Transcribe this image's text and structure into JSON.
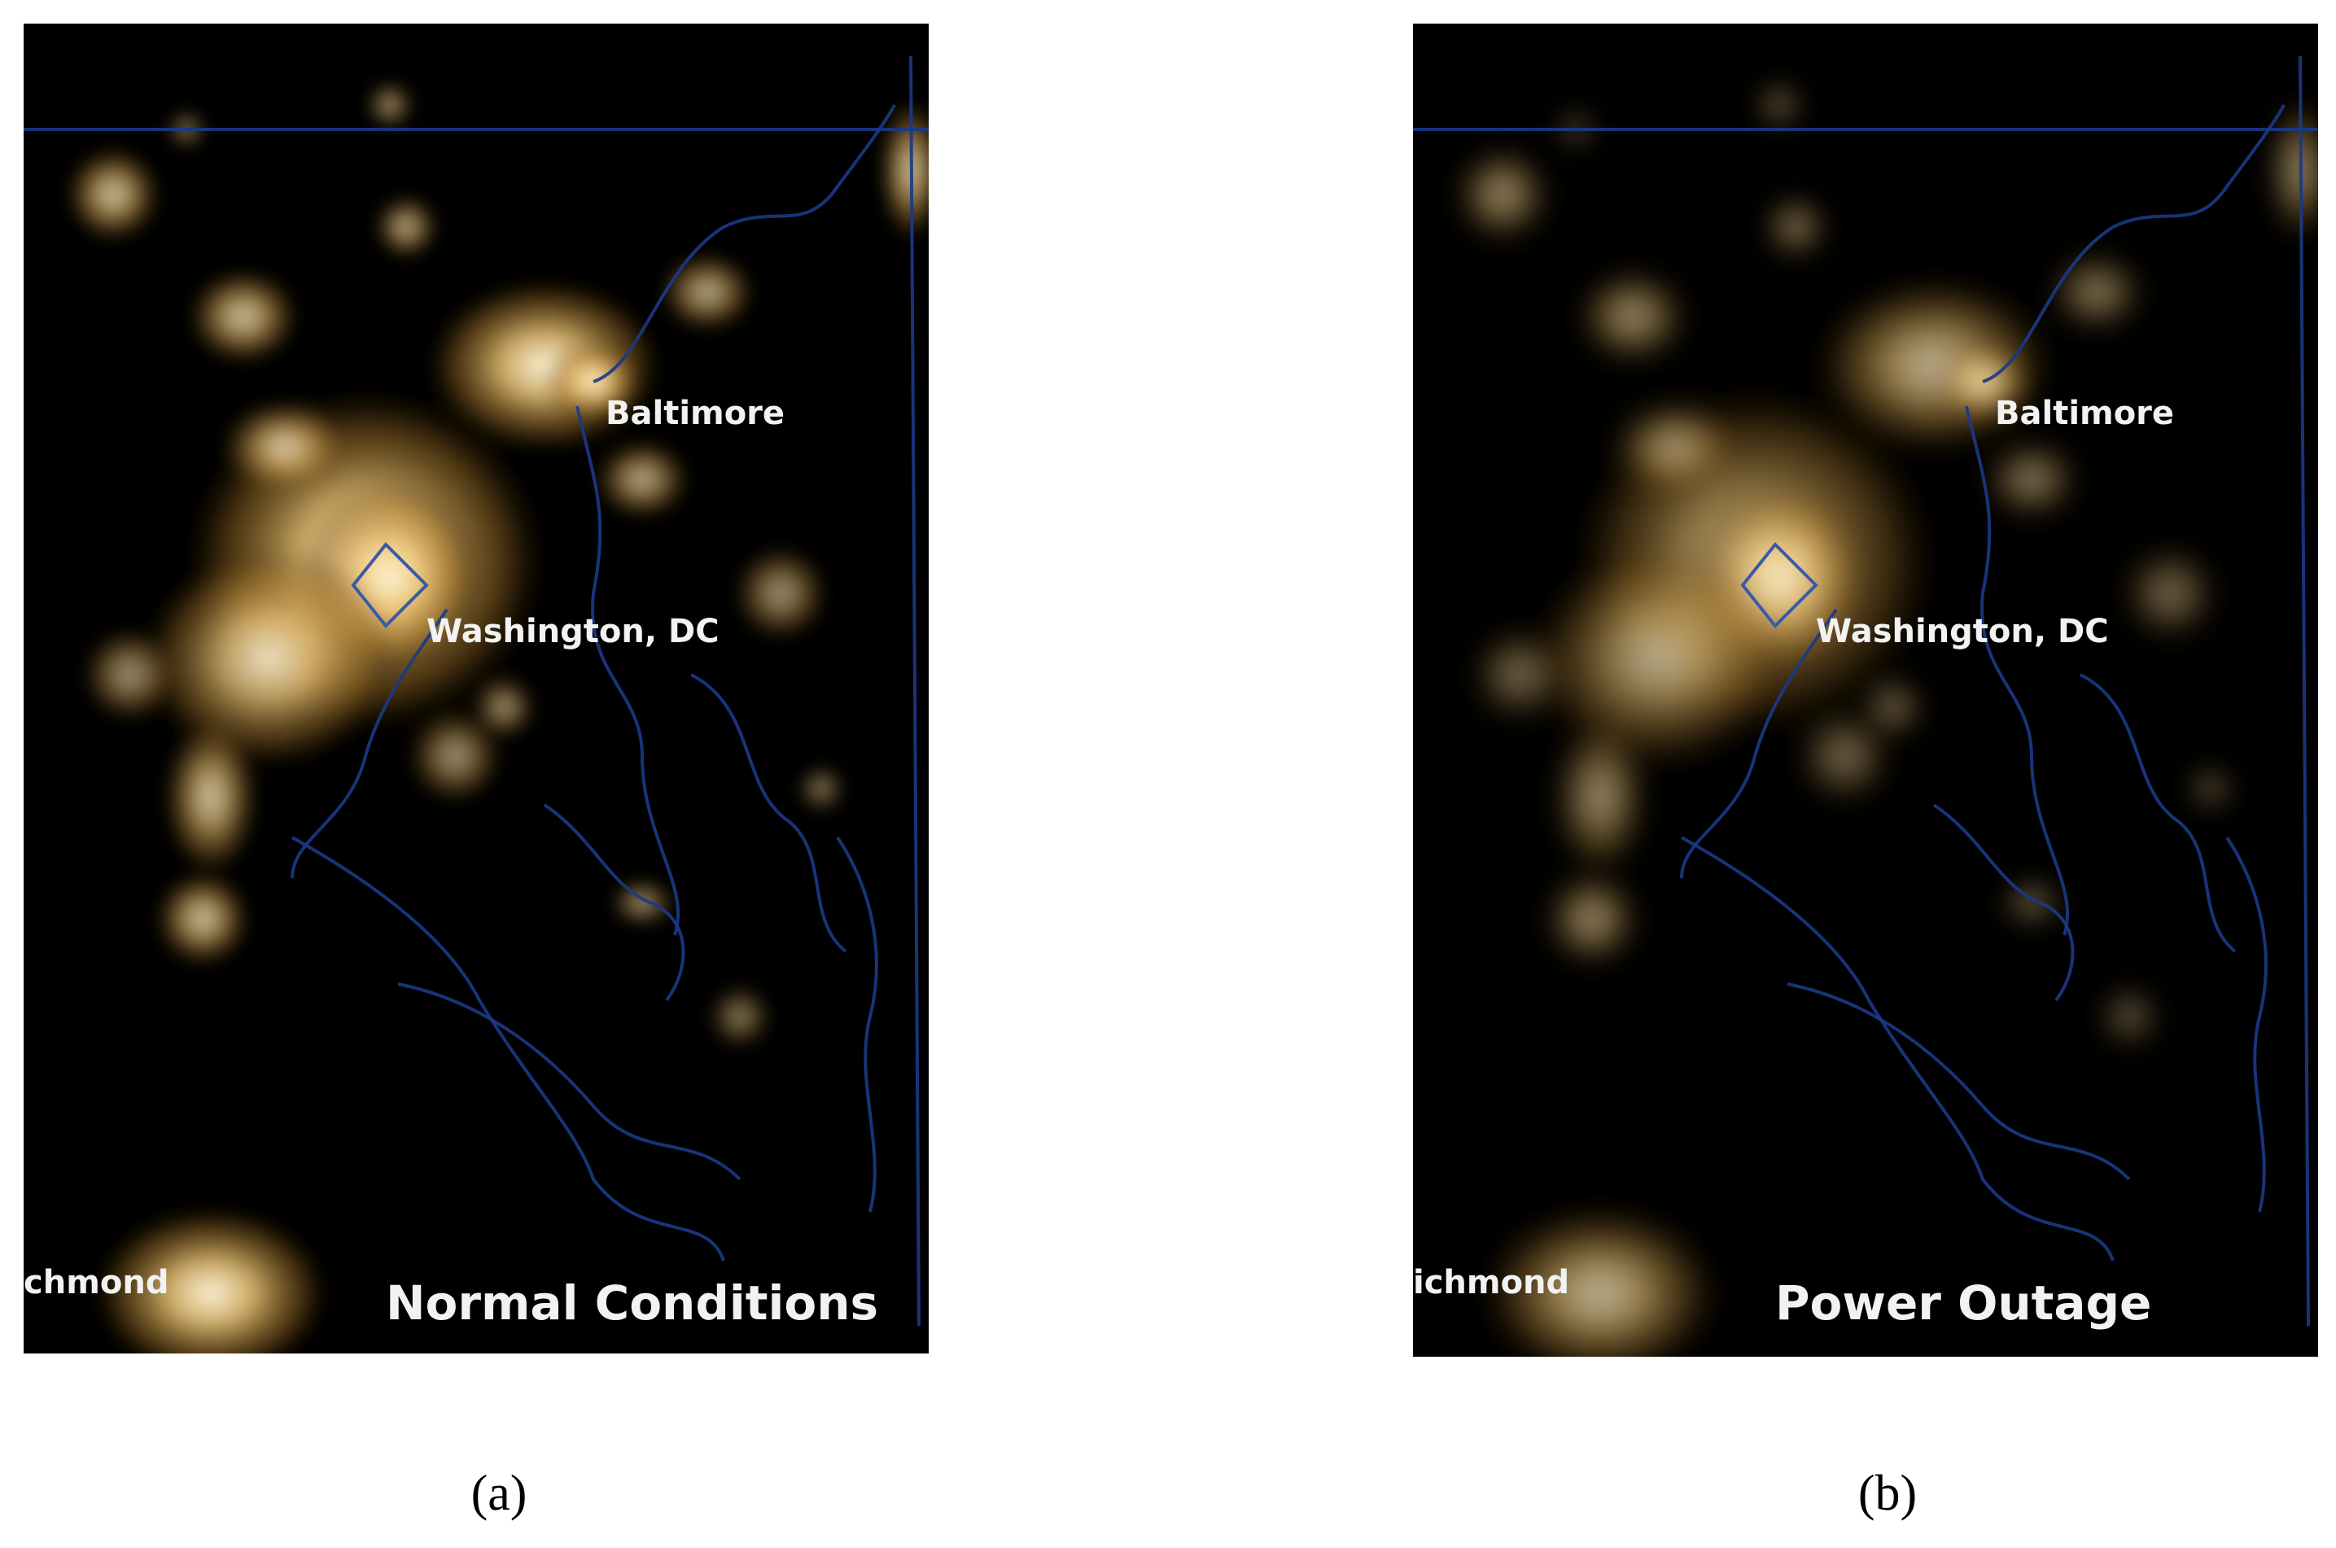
{
  "panels": [
    {
      "labels": {
        "baltimore": "Baltimore",
        "washington": "Washington, DC",
        "richmond": "chmond",
        "condition": "Normal Conditions"
      },
      "caption": "(a)"
    },
    {
      "labels": {
        "baltimore": "Baltimore",
        "washington": "Washington, DC",
        "richmond": "ichmond",
        "condition": "Power Outage"
      },
      "caption": "(b)"
    }
  ]
}
